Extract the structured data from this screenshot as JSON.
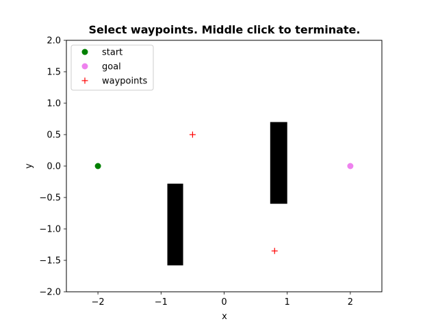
{
  "chart_data": {
    "type": "scatter",
    "title": "Select waypoints. Middle click to terminate.",
    "xlabel": "x",
    "ylabel": "y",
    "xlim": [
      -2.5,
      2.5
    ],
    "ylim": [
      -2.0,
      2.0
    ],
    "xticks": [
      -2,
      -1,
      0,
      1,
      2
    ],
    "xtick_labels": [
      "−2",
      "−1",
      "0",
      "1",
      "2"
    ],
    "yticks": [
      -2.0,
      -1.5,
      -1.0,
      -0.5,
      0.0,
      0.5,
      1.0,
      1.5,
      2.0
    ],
    "ytick_labels": [
      "−2.0",
      "−1.5",
      "−1.0",
      "−0.5",
      "0.0",
      "0.5",
      "1.0",
      "1.5",
      "2.0"
    ],
    "grid": false,
    "legend_position": "upper-left",
    "series": [
      {
        "name": "start",
        "marker": "circle",
        "color": "#008000",
        "points": [
          {
            "x": -2.0,
            "y": 0.0
          }
        ]
      },
      {
        "name": "goal",
        "marker": "circle",
        "color": "#ee82ee",
        "points": [
          {
            "x": 2.0,
            "y": 0.0
          }
        ]
      },
      {
        "name": "waypoints",
        "marker": "plus",
        "color": "#ff0000",
        "points": [
          {
            "x": -0.5,
            "y": 0.5
          },
          {
            "x": 0.8,
            "y": -1.35
          }
        ]
      }
    ],
    "obstacles": [
      {
        "x0": -0.9,
        "x1": -0.65,
        "y0": -1.58,
        "y1": -0.28,
        "color": "#000000"
      },
      {
        "x0": 0.73,
        "x1": 1.0,
        "y0": -0.6,
        "y1": 0.7,
        "color": "#000000"
      }
    ]
  }
}
